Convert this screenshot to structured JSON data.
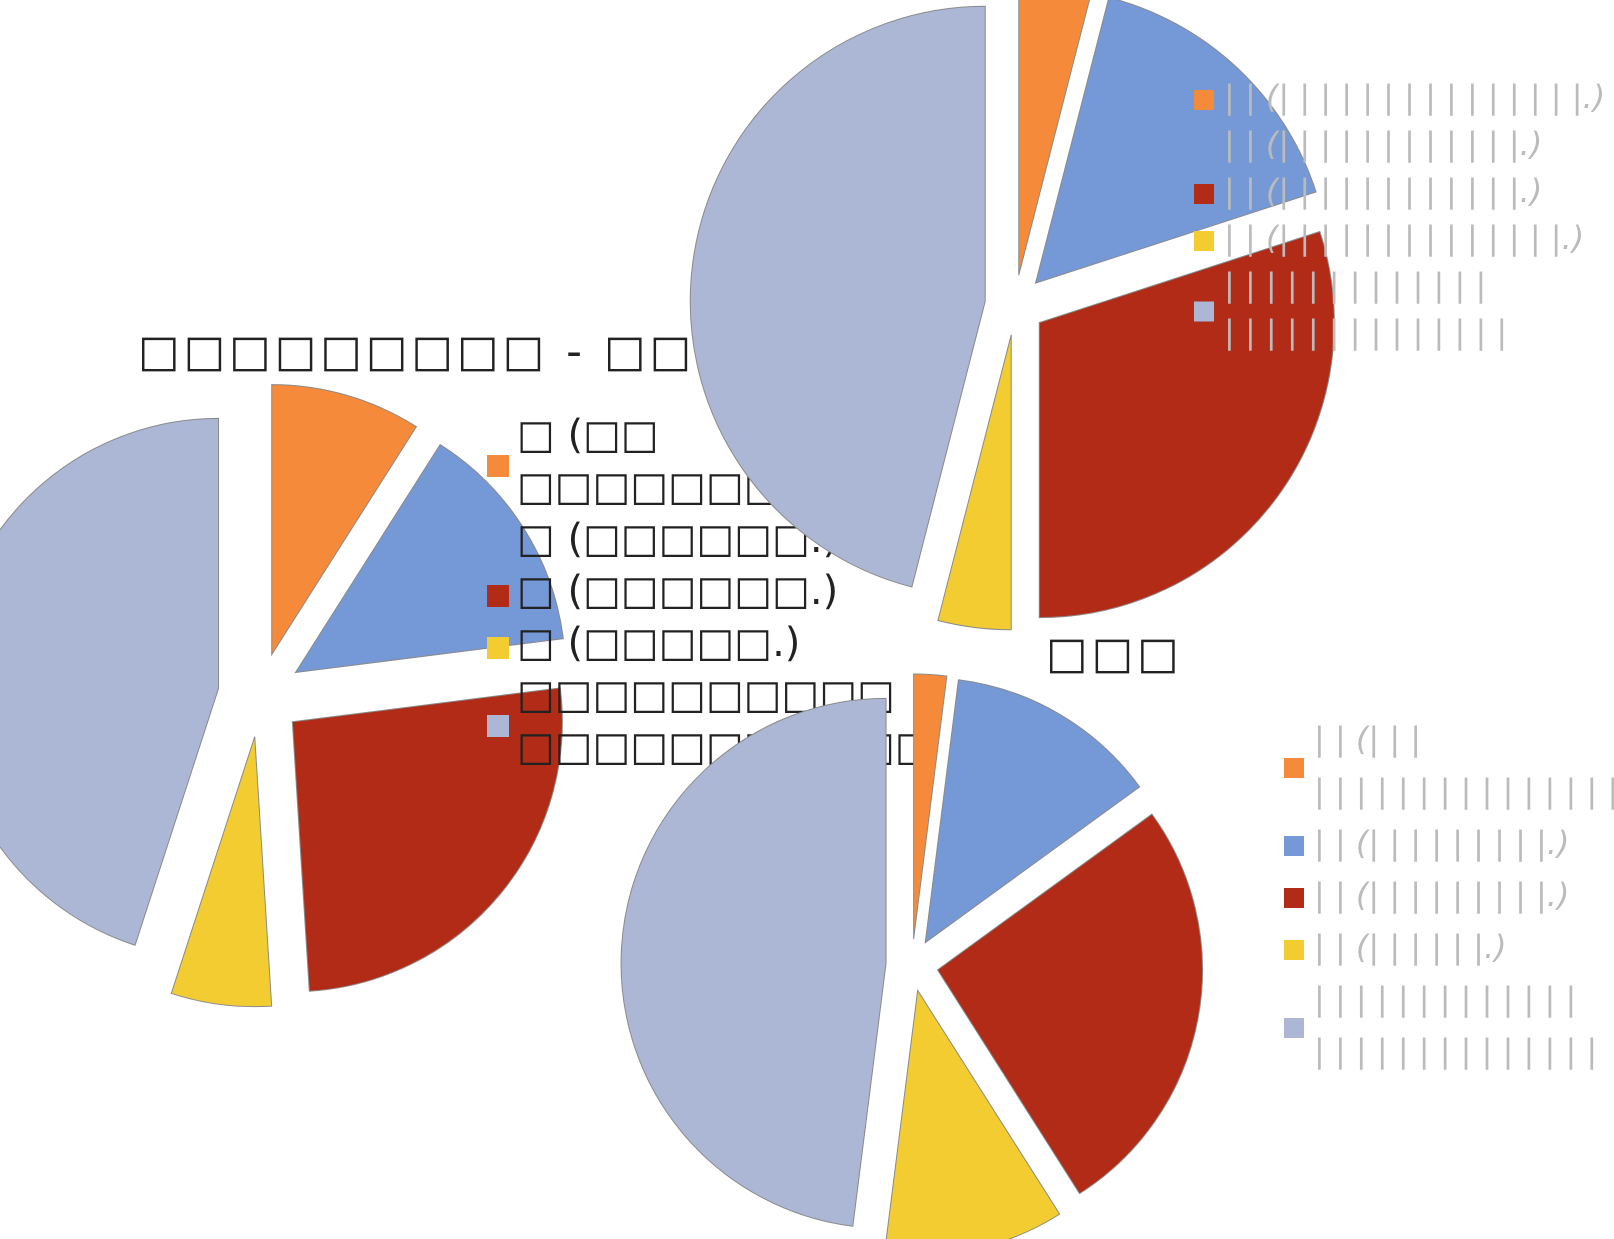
{
  "colors": {
    "orange": "#F58B3A",
    "blue": "#7599D6",
    "red": "#B12B17",
    "yellow": "#F2CC30",
    "lavender": "#ABB7D5",
    "stroke": "#8A8A8A"
  },
  "chart_data": [
    {
      "type": "pie",
      "title": "□□□□□□□□□ - □□□□□□□□",
      "exploded": true,
      "slices": [
        {
          "label": "□ (□□ □□□□□□□□□.)",
          "value": 9,
          "color": "#F58B3A"
        },
        {
          "label": "□ (□□□□□□.)",
          "value": 14,
          "color": "#7599D6"
        },
        {
          "label": "□ (□□□□□□.)",
          "value": 26,
          "color": "#B12B17"
        },
        {
          "label": "□ (□□□□□.)",
          "value": 6,
          "color": "#F2CC30"
        },
        {
          "label": "□□□□□□□□□□ □□□□□□□□□□□",
          "value": 45,
          "color": "#ABB7D5"
        }
      ]
    },
    {
      "type": "pie",
      "title": "",
      "exploded": true,
      "slices": [
        {
          "label": "| | (| | | | | | | | | | | | | | |.)",
          "value": 4,
          "color": "#F58B3A"
        },
        {
          "label": "| | (| | | | | | | | | | | |.)",
          "value": 16,
          "color": "#7599D6"
        },
        {
          "label": "| | (| | | | | | | | | | | |.)",
          "value": 30,
          "color": "#B12B17"
        },
        {
          "label": "| | (| | | | | | | | | | | | | |.)",
          "value": 4,
          "color": "#F2CC30"
        },
        {
          "label": "| | | | | | | | | | | | | | | | | | | | | | | | | | |",
          "value": 46,
          "color": "#ABB7D5"
        }
      ]
    },
    {
      "type": "pie",
      "title": "□□□",
      "exploded": true,
      "slices": [
        {
          "label": "| | (| | | | | | | | | | | | | | | | |.)",
          "value": 2,
          "color": "#F58B3A"
        },
        {
          "label": "| | (| | | | | | | | |.)",
          "value": 13,
          "color": "#7599D6"
        },
        {
          "label": "| | (| | | | | | | | |.)",
          "value": 26,
          "color": "#B12B17"
        },
        {
          "label": "| | (| | | | | |.)",
          "value": 11,
          "color": "#F2CC30"
        },
        {
          "label": "| | | | | | | | | | | | | | | | | | | | | | | | | |",
          "value": 48,
          "color": "#ABB7D5"
        }
      ]
    }
  ],
  "legends": [
    {
      "items": [
        {
          "lines": [
            "□ (□□",
            "□□□□□□□□□.)"
          ]
        },
        {
          "lines": [
            "□ (□□□□□□.)"
          ]
        },
        {
          "lines": [
            "□ (□□□□□□.)"
          ]
        },
        {
          "lines": [
            "□ (□□□□□.)"
          ]
        },
        {
          "lines": [
            "□□□□□□□□□□",
            "□□□□□□□□□□□"
          ]
        }
      ]
    },
    {
      "items": [
        {
          "lines": [
            "| | (| | | | | | | | | | | | | | |.)"
          ]
        },
        {
          "lines": [
            "| | (| | | | | | | | | | | |.)"
          ]
        },
        {
          "lines": [
            "| | (| | | | | | | | | | | |.)"
          ]
        },
        {
          "lines": [
            "| | (| | | | | | | | | | | | | |.)"
          ]
        },
        {
          "lines": [
            "| | | | | | | | | | | | |",
            "| | | | | | | | | | | | | |"
          ]
        }
      ]
    },
    {
      "items": [
        {
          "lines": [
            "| | (| | |",
            "| | | | | | | | | | | | | | |.)"
          ]
        },
        {
          "lines": [
            "| | (| | | | | | | | |.)"
          ]
        },
        {
          "lines": [
            "| | (| | | | | | | | |.)"
          ]
        },
        {
          "lines": [
            "| | (| | | | | |.)"
          ]
        },
        {
          "lines": [
            "| | | | | | | | | | | | |",
            "| | | | | | | | | | | | | |"
          ]
        }
      ]
    }
  ]
}
